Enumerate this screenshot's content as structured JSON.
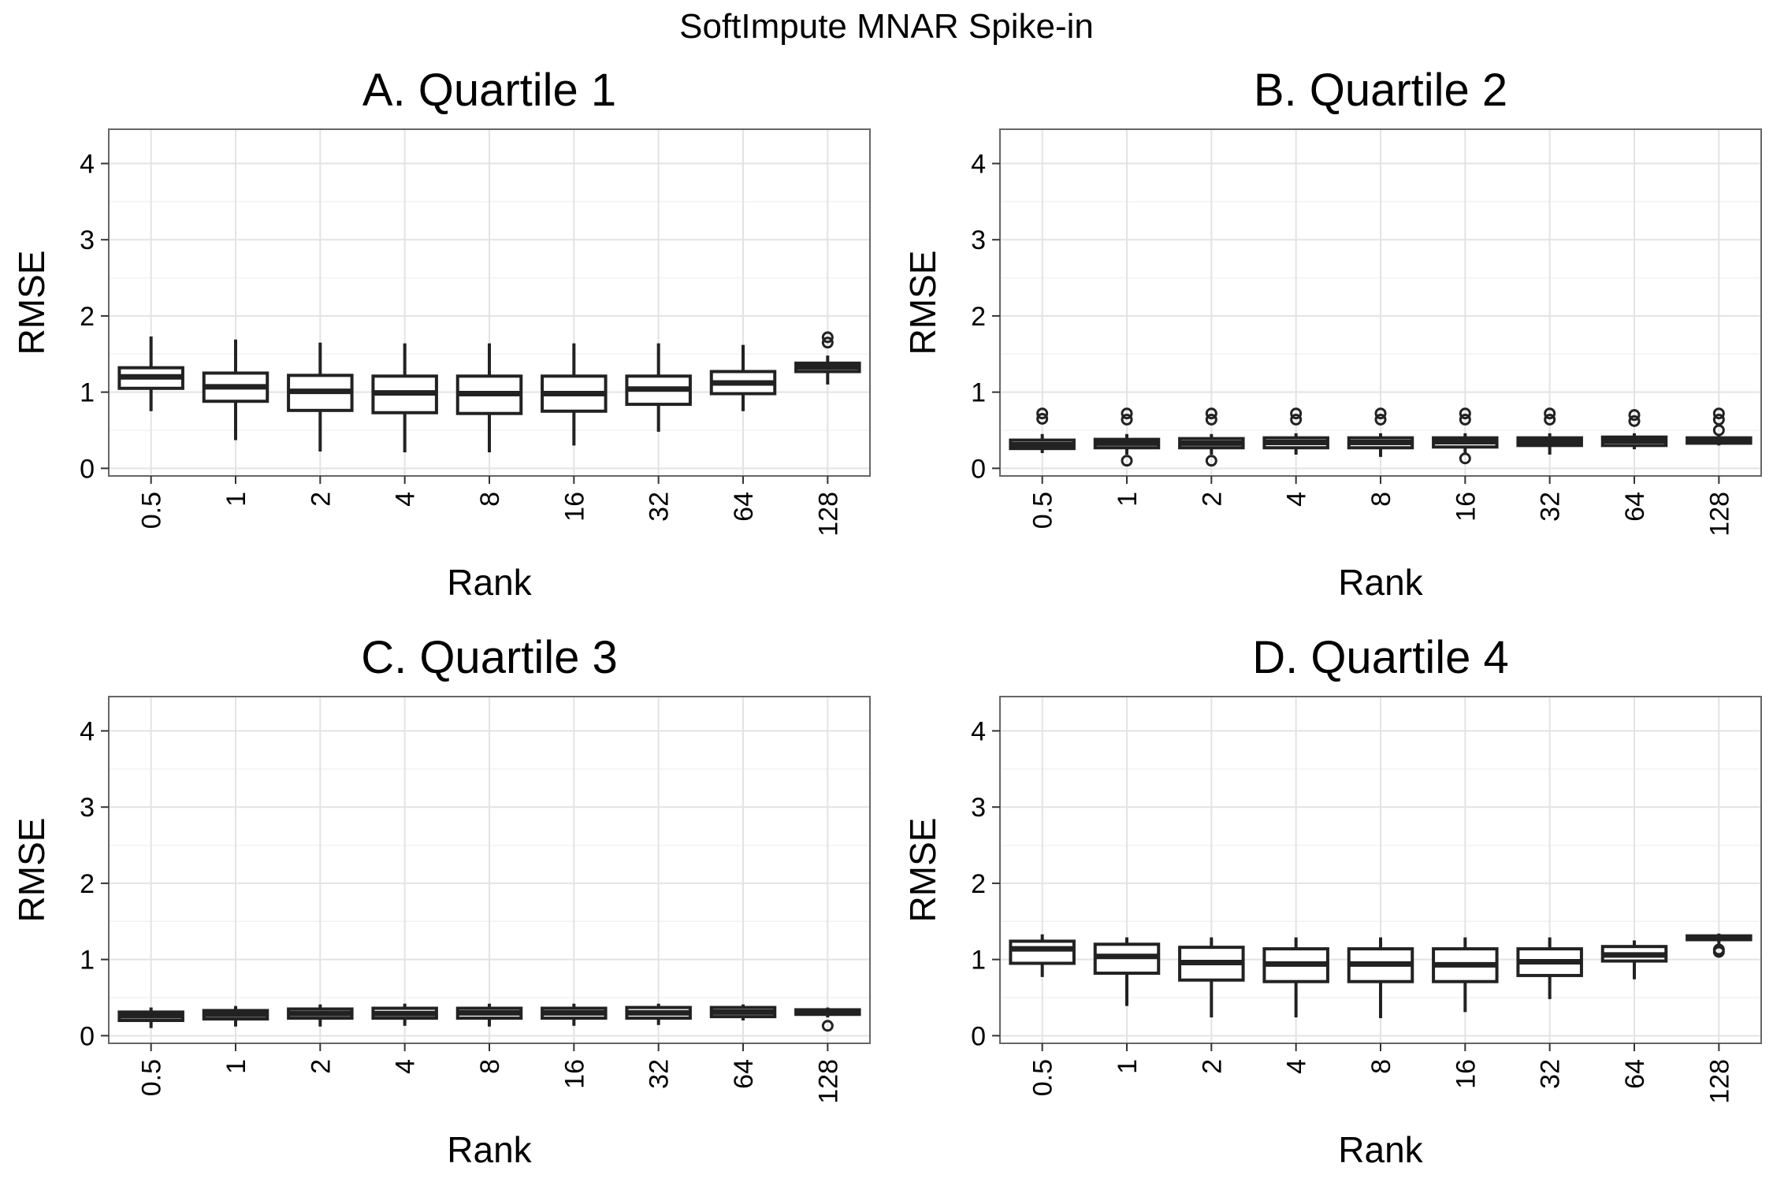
{
  "figure_title": "SoftImpute MNAR Spike-in",
  "chart_data": [
    {
      "type": "boxplot",
      "title": "A. Quartile 1",
      "xlabel": "Rank",
      "ylabel": "RMSE",
      "ylim": [
        -0.1,
        4.45
      ],
      "yticks": [
        "0",
        "1",
        "2",
        "3",
        "4"
      ],
      "categories": [
        "0.5",
        "1",
        "2",
        "4",
        "8",
        "16",
        "32",
        "64",
        "128"
      ],
      "grid": true,
      "boxes": [
        {
          "low": 0.75,
          "q1": 1.05,
          "median": 1.2,
          "q3": 1.32,
          "high": 1.73,
          "outliers": []
        },
        {
          "low": 0.37,
          "q1": 0.88,
          "median": 1.07,
          "q3": 1.25,
          "high": 1.69,
          "outliers": []
        },
        {
          "low": 0.22,
          "q1": 0.76,
          "median": 1.01,
          "q3": 1.22,
          "high": 1.65,
          "outliers": []
        },
        {
          "low": 0.21,
          "q1": 0.73,
          "median": 0.99,
          "q3": 1.21,
          "high": 1.64,
          "outliers": []
        },
        {
          "low": 0.21,
          "q1": 0.72,
          "median": 0.98,
          "q3": 1.21,
          "high": 1.64,
          "outliers": []
        },
        {
          "low": 0.3,
          "q1": 0.75,
          "median": 0.98,
          "q3": 1.21,
          "high": 1.64,
          "outliers": []
        },
        {
          "low": 0.48,
          "q1": 0.84,
          "median": 1.04,
          "q3": 1.21,
          "high": 1.64,
          "outliers": []
        },
        {
          "low": 0.75,
          "q1": 0.98,
          "median": 1.12,
          "q3": 1.27,
          "high": 1.62,
          "outliers": []
        },
        {
          "low": 1.1,
          "q1": 1.27,
          "median": 1.33,
          "q3": 1.38,
          "high": 1.48,
          "outliers": [
            1.65,
            1.72
          ]
        }
      ]
    },
    {
      "type": "boxplot",
      "title": "B. Quartile 2",
      "xlabel": "Rank",
      "ylabel": "RMSE",
      "ylim": [
        -0.1,
        4.45
      ],
      "yticks": [
        "0",
        "1",
        "2",
        "3",
        "4"
      ],
      "categories": [
        "0.5",
        "1",
        "2",
        "4",
        "8",
        "16",
        "32",
        "64",
        "128"
      ],
      "grid": true,
      "boxes": [
        {
          "low": 0.2,
          "q1": 0.26,
          "median": 0.31,
          "q3": 0.37,
          "high": 0.45,
          "outliers": [
            0.65,
            0.72
          ]
        },
        {
          "low": 0.18,
          "q1": 0.27,
          "median": 0.33,
          "q3": 0.38,
          "high": 0.45,
          "outliers": [
            0.1,
            0.64,
            0.72
          ]
        },
        {
          "low": 0.18,
          "q1": 0.27,
          "median": 0.33,
          "q3": 0.39,
          "high": 0.45,
          "outliers": [
            0.1,
            0.64,
            0.72
          ]
        },
        {
          "low": 0.18,
          "q1": 0.27,
          "median": 0.34,
          "q3": 0.4,
          "high": 0.46,
          "outliers": [
            0.64,
            0.72
          ]
        },
        {
          "low": 0.15,
          "q1": 0.27,
          "median": 0.34,
          "q3": 0.4,
          "high": 0.46,
          "outliers": [
            0.64,
            0.72
          ]
        },
        {
          "low": 0.2,
          "q1": 0.28,
          "median": 0.35,
          "q3": 0.4,
          "high": 0.46,
          "outliers": [
            0.13,
            0.64,
            0.72
          ]
        },
        {
          "low": 0.18,
          "q1": 0.3,
          "median": 0.35,
          "q3": 0.4,
          "high": 0.46,
          "outliers": [
            0.64,
            0.72
          ]
        },
        {
          "low": 0.25,
          "q1": 0.3,
          "median": 0.36,
          "q3": 0.41,
          "high": 0.46,
          "outliers": [
            0.62,
            0.7
          ]
        },
        {
          "low": 0.3,
          "q1": 0.33,
          "median": 0.36,
          "q3": 0.4,
          "high": 0.44,
          "outliers": [
            0.5,
            0.64,
            0.72
          ]
        }
      ]
    },
    {
      "type": "boxplot",
      "title": "C. Quartile 3",
      "xlabel": "Rank",
      "ylabel": "RMSE",
      "ylim": [
        -0.1,
        4.45
      ],
      "yticks": [
        "0",
        "1",
        "2",
        "3",
        "4"
      ],
      "categories": [
        "0.5",
        "1",
        "2",
        "4",
        "8",
        "16",
        "32",
        "64",
        "128"
      ],
      "grid": true,
      "boxes": [
        {
          "low": 0.1,
          "q1": 0.2,
          "median": 0.26,
          "q3": 0.31,
          "high": 0.37,
          "outliers": []
        },
        {
          "low": 0.12,
          "q1": 0.22,
          "median": 0.28,
          "q3": 0.33,
          "high": 0.39,
          "outliers": []
        },
        {
          "low": 0.12,
          "q1": 0.23,
          "median": 0.29,
          "q3": 0.35,
          "high": 0.41,
          "outliers": []
        },
        {
          "low": 0.13,
          "q1": 0.23,
          "median": 0.29,
          "q3": 0.36,
          "high": 0.42,
          "outliers": []
        },
        {
          "low": 0.12,
          "q1": 0.23,
          "median": 0.3,
          "q3": 0.36,
          "high": 0.42,
          "outliers": []
        },
        {
          "low": 0.13,
          "q1": 0.23,
          "median": 0.3,
          "q3": 0.36,
          "high": 0.42,
          "outliers": []
        },
        {
          "low": 0.14,
          "q1": 0.23,
          "median": 0.3,
          "q3": 0.37,
          "high": 0.42,
          "outliers": []
        },
        {
          "low": 0.2,
          "q1": 0.25,
          "median": 0.31,
          "q3": 0.37,
          "high": 0.41,
          "outliers": []
        },
        {
          "low": 0.24,
          "q1": 0.28,
          "median": 0.31,
          "q3": 0.34,
          "high": 0.37,
          "outliers": [
            0.13
          ]
        }
      ]
    },
    {
      "type": "boxplot",
      "title": "D. Quartile 4",
      "xlabel": "Rank",
      "ylabel": "RMSE",
      "ylim": [
        -0.1,
        4.45
      ],
      "yticks": [
        "0",
        "1",
        "2",
        "3",
        "4"
      ],
      "categories": [
        "0.5",
        "1",
        "2",
        "4",
        "8",
        "16",
        "32",
        "64",
        "128"
      ],
      "grid": true,
      "boxes": [
        {
          "low": 0.77,
          "q1": 0.95,
          "median": 1.14,
          "q3": 1.24,
          "high": 1.33,
          "outliers": []
        },
        {
          "low": 0.39,
          "q1": 0.82,
          "median": 1.04,
          "q3": 1.2,
          "high": 1.29,
          "outliers": []
        },
        {
          "low": 0.24,
          "q1": 0.73,
          "median": 0.96,
          "q3": 1.16,
          "high": 1.29,
          "outliers": []
        },
        {
          "low": 0.24,
          "q1": 0.71,
          "median": 0.94,
          "q3": 1.14,
          "high": 1.29,
          "outliers": []
        },
        {
          "low": 0.23,
          "q1": 0.71,
          "median": 0.94,
          "q3": 1.14,
          "high": 1.29,
          "outliers": []
        },
        {
          "low": 0.31,
          "q1": 0.71,
          "median": 0.93,
          "q3": 1.14,
          "high": 1.29,
          "outliers": []
        },
        {
          "low": 0.48,
          "q1": 0.79,
          "median": 0.97,
          "q3": 1.14,
          "high": 1.29,
          "outliers": []
        },
        {
          "low": 0.74,
          "q1": 0.98,
          "median": 1.06,
          "q3": 1.17,
          "high": 1.25,
          "outliers": []
        },
        {
          "low": 1.2,
          "q1": 1.26,
          "median": 1.28,
          "q3": 1.31,
          "high": 1.34,
          "outliers": [
            1.1,
            1.13
          ]
        }
      ]
    }
  ]
}
